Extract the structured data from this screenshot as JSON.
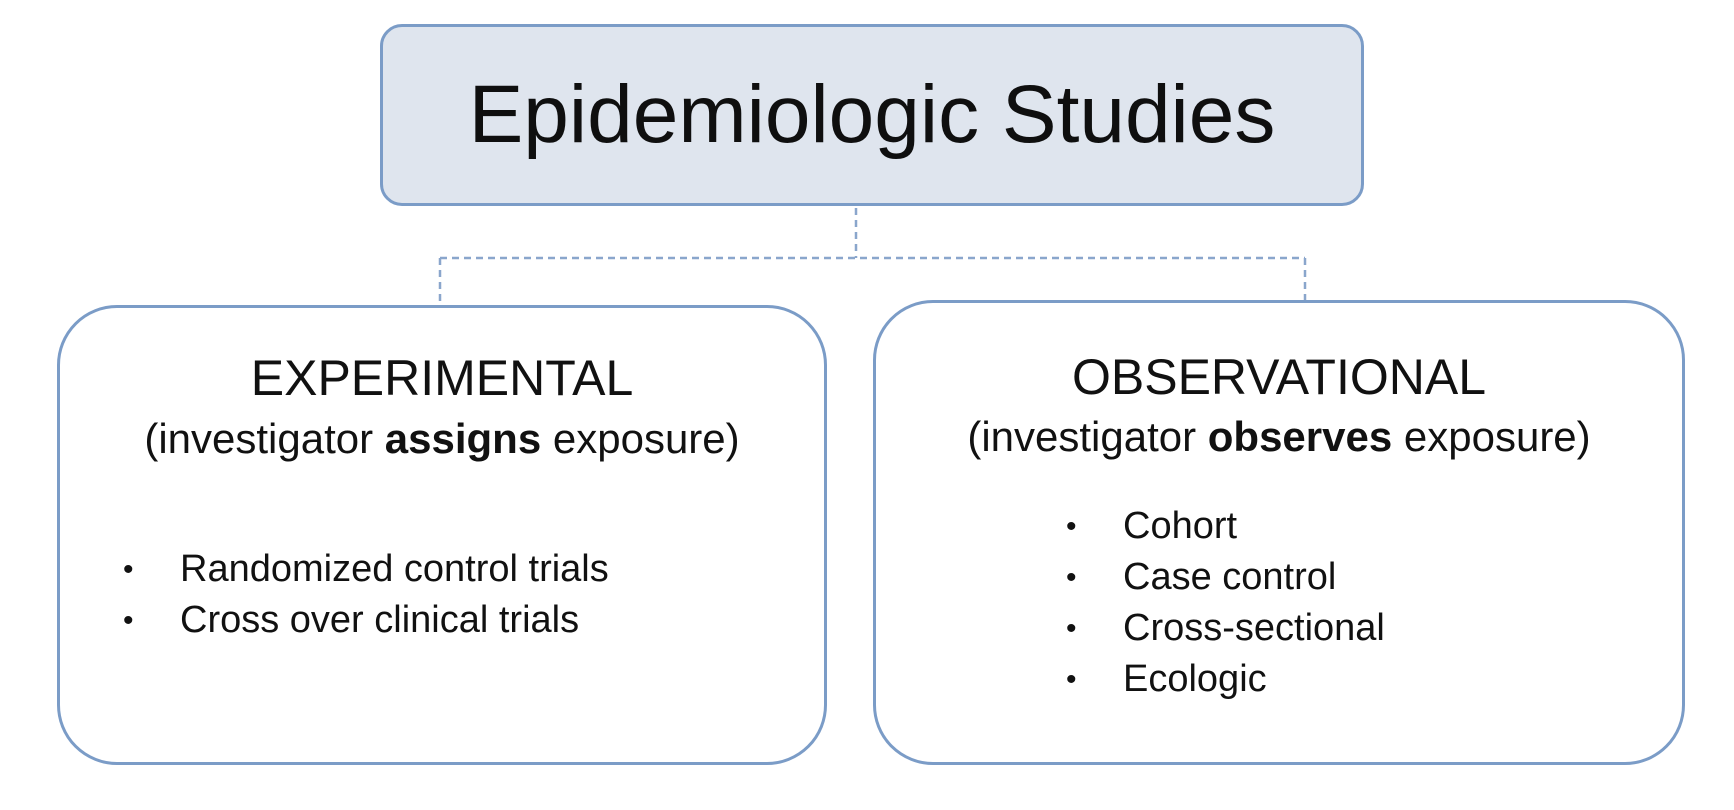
{
  "diagram": {
    "title": "Epidemiologic Studies",
    "experimental": {
      "heading": "EXPERIMENTAL",
      "sub_prefix": "(investigator ",
      "sub_bold": "assigns",
      "sub_suffix": " exposure)",
      "items": [
        "Randomized control trials",
        "Cross over clinical trials"
      ]
    },
    "observational": {
      "heading": "OBSERVATIONAL",
      "sub_prefix": "(investigator ",
      "sub_bold": "observes",
      "sub_suffix": " exposure)",
      "items": [
        "Cohort",
        "Case control",
        "Cross-sectional",
        "Ecologic"
      ]
    }
  },
  "colors": {
    "border": "#7b9cc7",
    "title_fill": "#dfe5ee",
    "connector": "#8aa6cc"
  }
}
